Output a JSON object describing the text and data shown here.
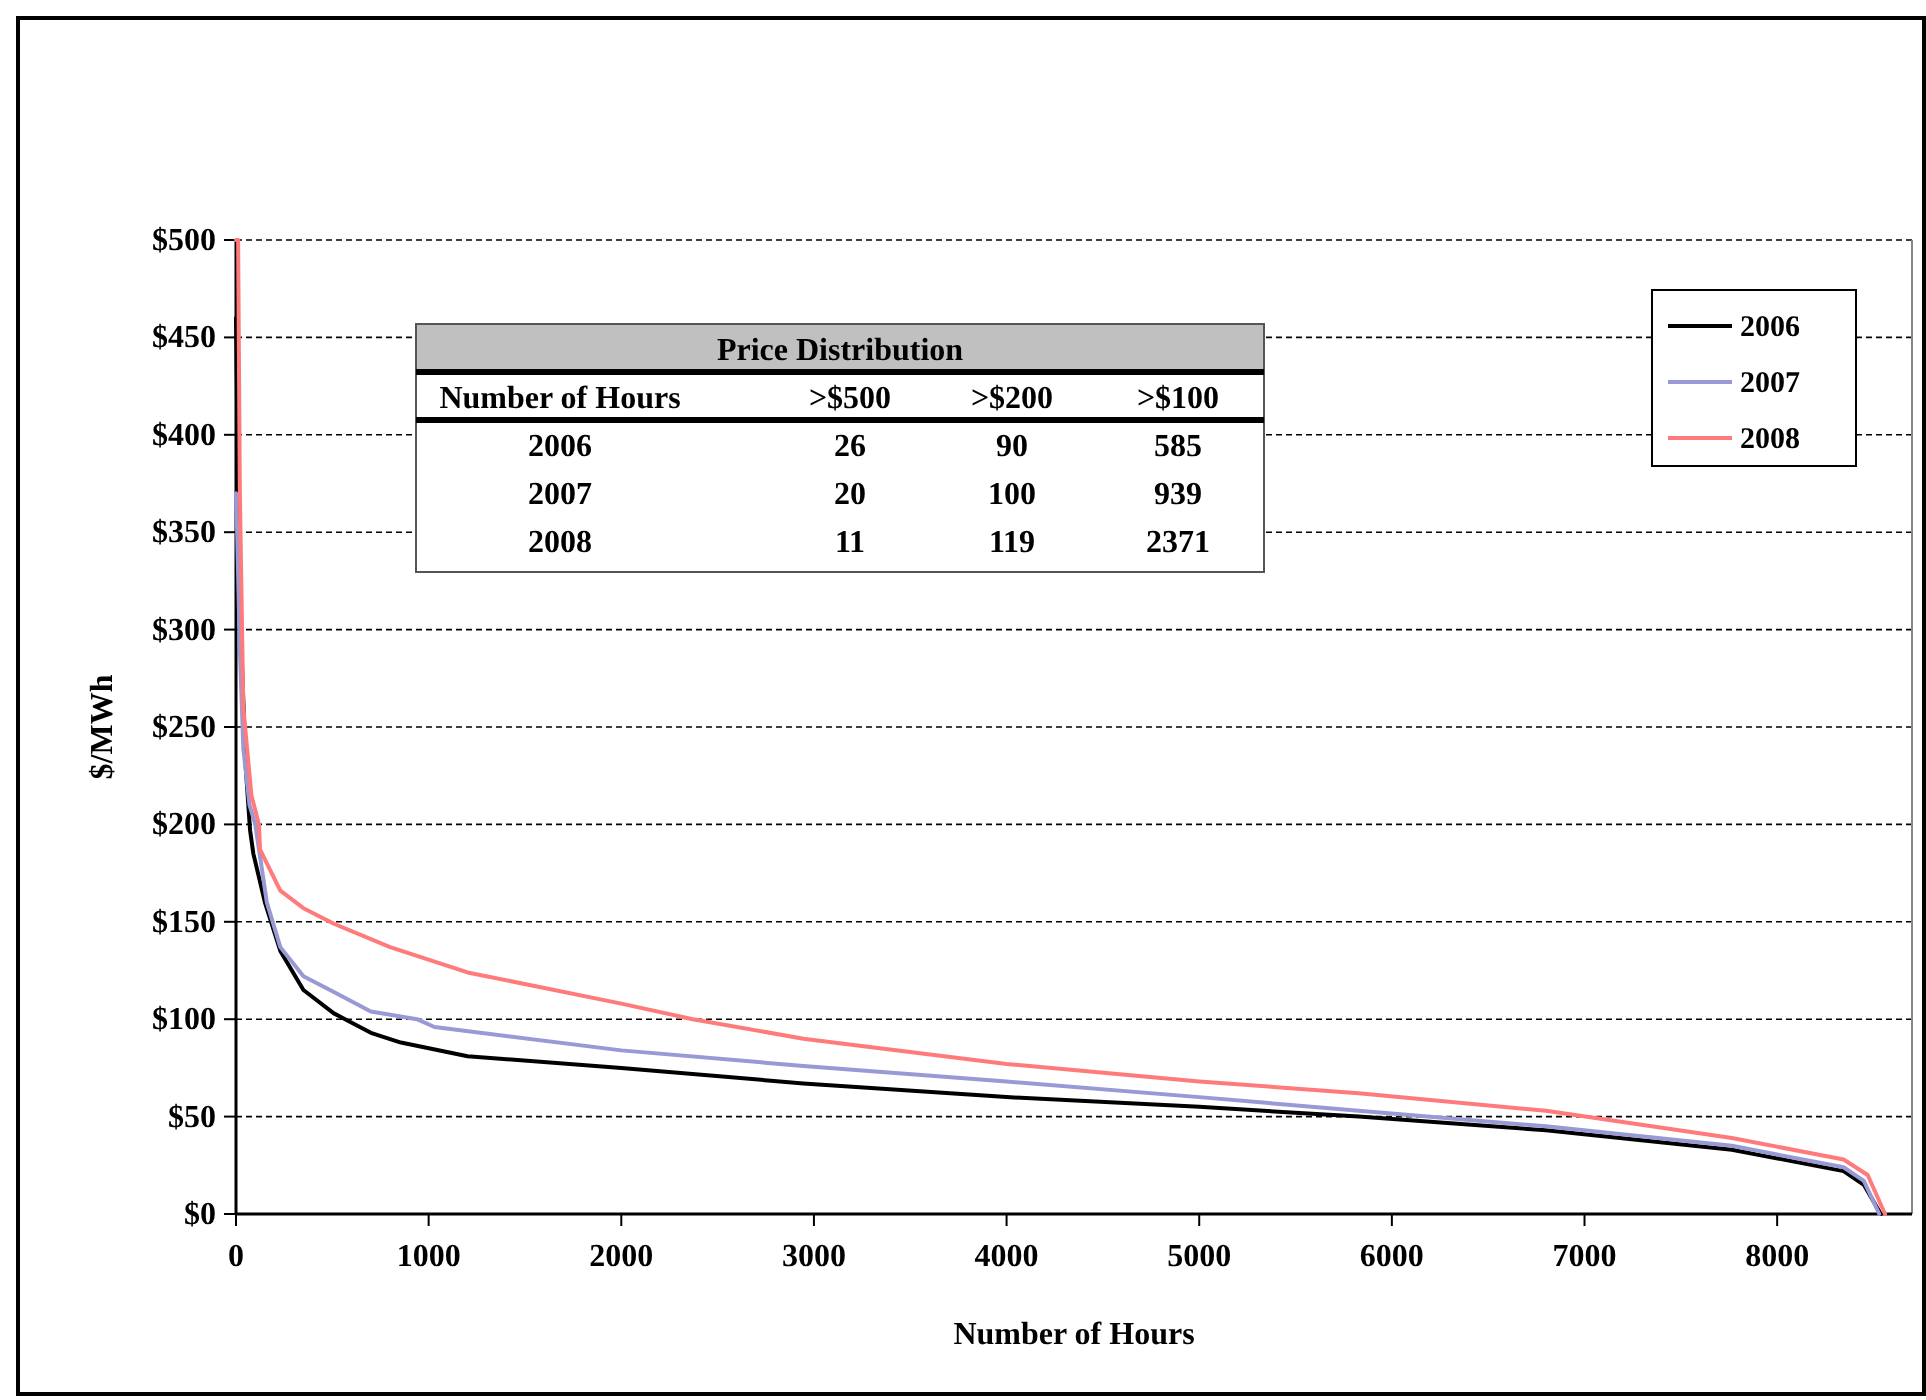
{
  "chart_data": {
    "type": "line",
    "xlabel": "Number of Hours",
    "ylabel": "$/MWh",
    "xlim": [
      0,
      8700
    ],
    "ylim": [
      0,
      500
    ],
    "xticks": [
      0,
      1000,
      2000,
      3000,
      4000,
      5000,
      6000,
      7000,
      8000
    ],
    "yticks": [
      {
        "value": 0,
        "label": "$0"
      },
      {
        "value": 50,
        "label": "$50"
      },
      {
        "value": 100,
        "label": "$100"
      },
      {
        "value": 150,
        "label": "$150"
      },
      {
        "value": 200,
        "label": "$200"
      },
      {
        "value": 250,
        "label": "$250"
      },
      {
        "value": 300,
        "label": "$300"
      },
      {
        "value": 350,
        "label": "$350"
      },
      {
        "value": 400,
        "label": "$400"
      },
      {
        "value": 450,
        "label": "$450"
      },
      {
        "value": 500,
        "label": "$500"
      }
    ],
    "grid": "y",
    "legend": "top right",
    "marker": "none",
    "line_style": "solid",
    "series": [
      {
        "name": "2006",
        "color": "#000000",
        "x": [
          0,
          10,
          28,
          50,
          73,
          90,
          150,
          230,
          350,
          508,
          700,
          856,
          1202,
          2000,
          2945,
          4000,
          5000,
          5828,
          6800,
          7765,
          8345,
          8450,
          8538
        ],
        "values": [
          460,
          380,
          291,
          230,
          197,
          185,
          160,
          135,
          115,
          103,
          93,
          88,
          81,
          75,
          67,
          60,
          55,
          50,
          43,
          33,
          22,
          15,
          0
        ]
      },
      {
        "name": "2007",
        "color": "#9999d6",
        "x": [
          0,
          5,
          20,
          38,
          70,
          100,
          160,
          230,
          350,
          508,
          700,
          939,
          1030,
          2000,
          2945,
          4000,
          5000,
          5828,
          6800,
          7765,
          8345,
          8450,
          8530
        ],
        "values": [
          370,
          354,
          290,
          239,
          210,
          200,
          160,
          137,
          122,
          114,
          104,
          100,
          96,
          84,
          76,
          68,
          60,
          53,
          45,
          35,
          24,
          17,
          0
        ]
      },
      {
        "name": "2008",
        "color": "#ff7b7b",
        "x": [
          0,
          5,
          11,
          20,
          38,
          80,
          119,
          125,
          230,
          350,
          508,
          800,
          1202,
          2000,
          2371,
          2945,
          4000,
          5000,
          5828,
          6800,
          7765,
          8345,
          8470,
          8560
        ],
        "values": [
          500,
          500,
          500,
          371,
          260,
          215,
          200,
          187,
          166,
          157,
          149,
          137,
          124,
          108,
          100,
          90,
          77,
          68,
          62,
          53,
          39,
          28,
          20,
          0
        ]
      }
    ],
    "annotations": [
      "Price Distribution",
      "Number of Hours",
      ">$500",
      ">$200",
      ">$100",
      "2006",
      "26",
      "90",
      "585",
      "2007",
      "20",
      "100",
      "939",
      "2008",
      "11",
      "119",
      "2371"
    ]
  }
}
